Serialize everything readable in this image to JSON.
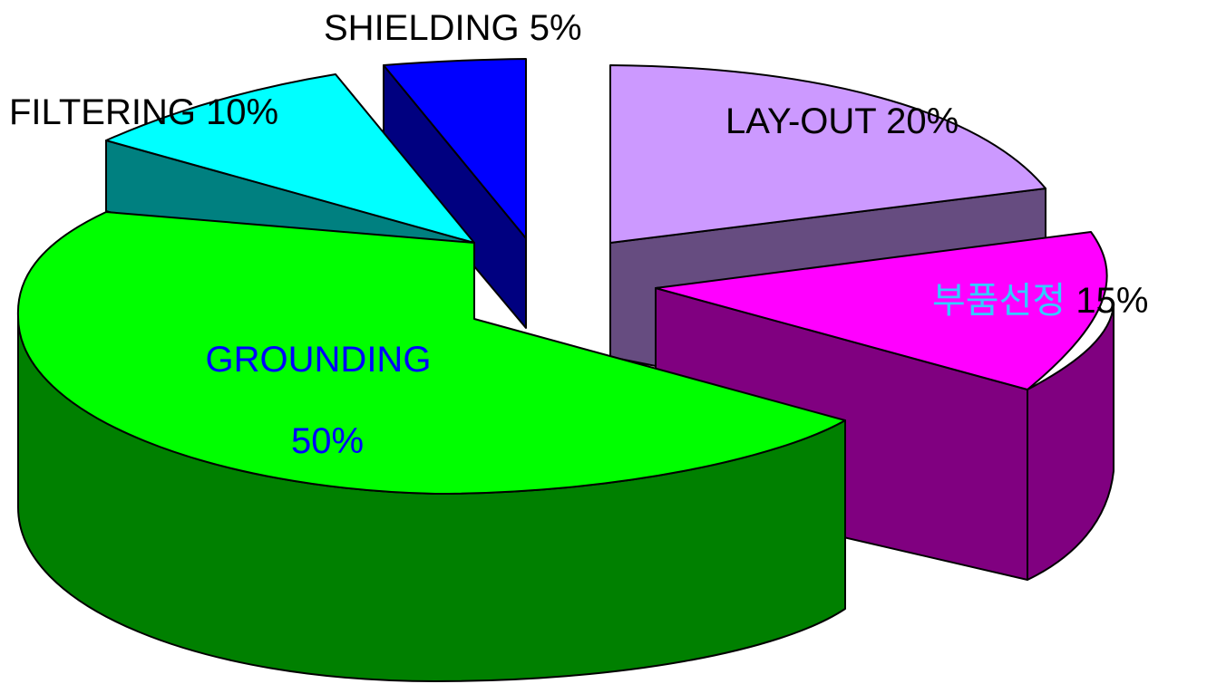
{
  "chart_data": {
    "type": "pie",
    "style": "3d-exploded",
    "slices": [
      {
        "key": "grounding",
        "label": "GROUNDING",
        "value_text": "50%",
        "value": 50,
        "top_color": "#00ff00",
        "side_color": "#008000",
        "label_color": "#0000ff"
      },
      {
        "key": "filtering",
        "label": "FILTERING",
        "value_text": "10%",
        "value": 10,
        "top_color": "#00ffff",
        "side_color": "#008080",
        "label_color": "#000000"
      },
      {
        "key": "shielding",
        "label": "SHIELDING",
        "value_text": "5%",
        "value": 5,
        "top_color": "#0000ff",
        "side_color": "#000080",
        "label_color": "#000000"
      },
      {
        "key": "layout",
        "label": "LAY-OUT",
        "value_text": "20%",
        "value": 20,
        "top_color": "#cc99ff",
        "side_color": "#664c80",
        "label_color": "#000000"
      },
      {
        "key": "parts",
        "label": "부품선정",
        "value_text": "15%",
        "value": 15,
        "top_color": "#ff00ff",
        "side_color": "#800080",
        "label_color": "#33ccff",
        "value_color": "#000000"
      }
    ]
  }
}
